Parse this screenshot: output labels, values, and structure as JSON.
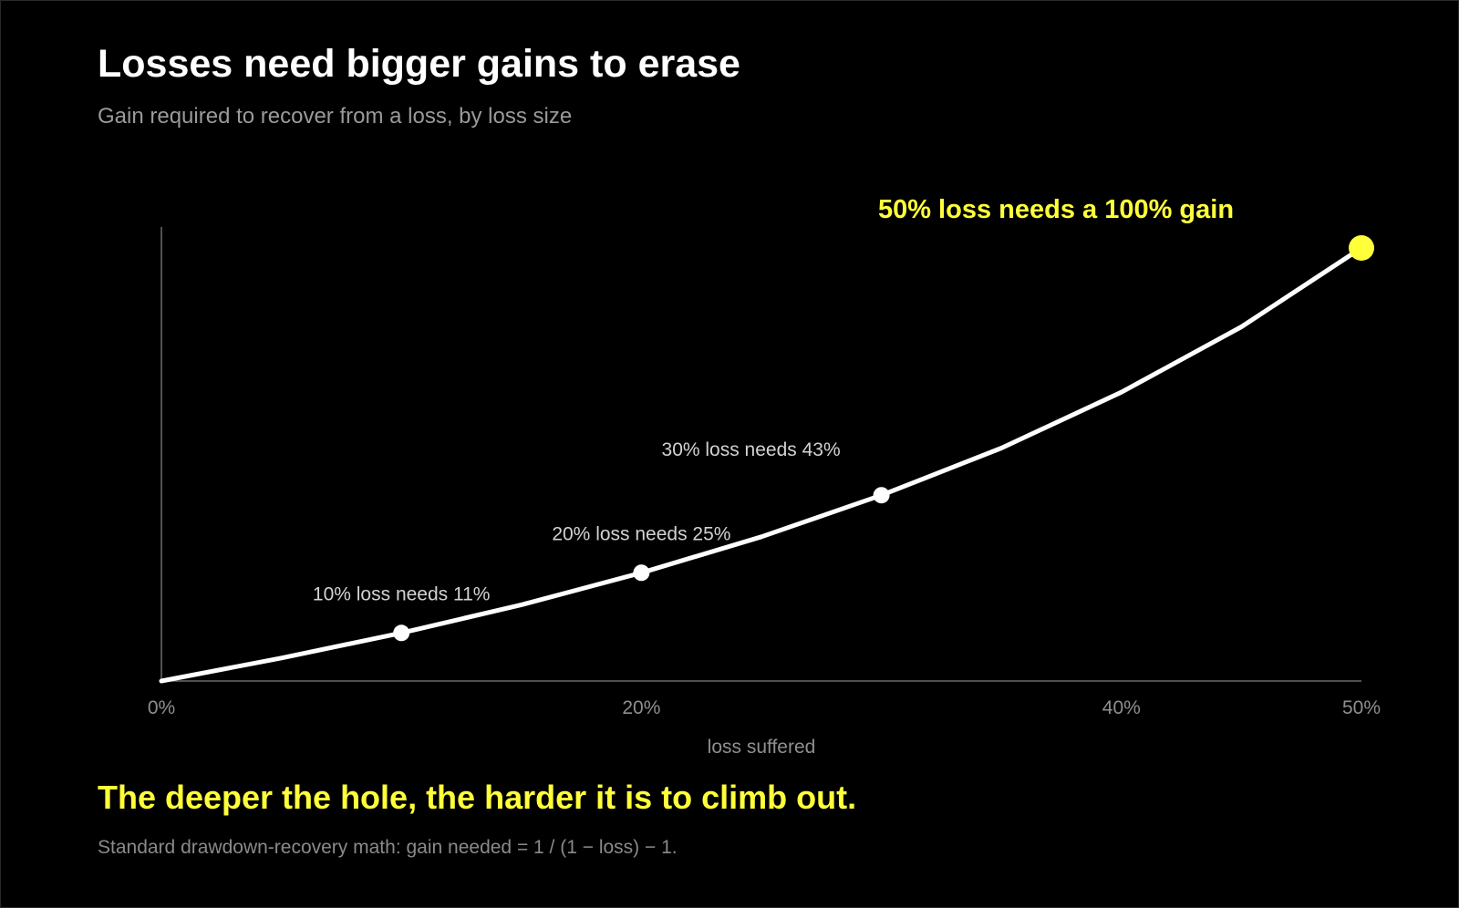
{
  "title": "Losses need bigger gains to erase",
  "subtitle": "Gain required to recover from a loss, by loss size",
  "takeaway": "The deeper the hole, the harder it is to climb out.",
  "source_note": "Standard drawdown-recovery math: gain needed = 1 / (1 − loss) − 1.",
  "colors": {
    "background": "#000000",
    "line": "#ffffff",
    "highlight": "#ffff3a",
    "axis": "#8f8f8f",
    "annotation": "#d2d2d2"
  },
  "chart_data": {
    "type": "line",
    "title": "Losses need bigger gains to erase",
    "subtitle": "Gain required to recover from a loss, by loss size",
    "xlabel": "loss suffered",
    "ylabel": "",
    "xlim": [
      0,
      50
    ],
    "ylim": [
      0,
      95
    ],
    "grid": false,
    "x_ticks": [
      {
        "value": 0,
        "label": "0%"
      },
      {
        "value": 20,
        "label": "20%"
      },
      {
        "value": 40,
        "label": "40%"
      },
      {
        "value": 50,
        "label": "50%"
      }
    ],
    "series": [
      {
        "x": [
          0,
          5,
          10,
          15,
          20,
          25,
          30,
          35,
          40,
          45,
          50
        ],
        "y": [
          0,
          5.3,
          11.1,
          17.6,
          25,
          33.3,
          42.9,
          53.8,
          66.7,
          81.8,
          100
        ]
      }
    ],
    "annotations": [
      {
        "x": 10,
        "y": 11.1,
        "text": "10% loss needs 11%",
        "highlight": false
      },
      {
        "x": 20,
        "y": 25,
        "text": "20% loss needs 25%",
        "highlight": false
      },
      {
        "x": 30,
        "y": 42.9,
        "text": "30% loss needs 43%",
        "highlight": false
      },
      {
        "x": 50,
        "y": 100,
        "text": "50% loss needs a 100% gain",
        "highlight": true
      }
    ]
  }
}
